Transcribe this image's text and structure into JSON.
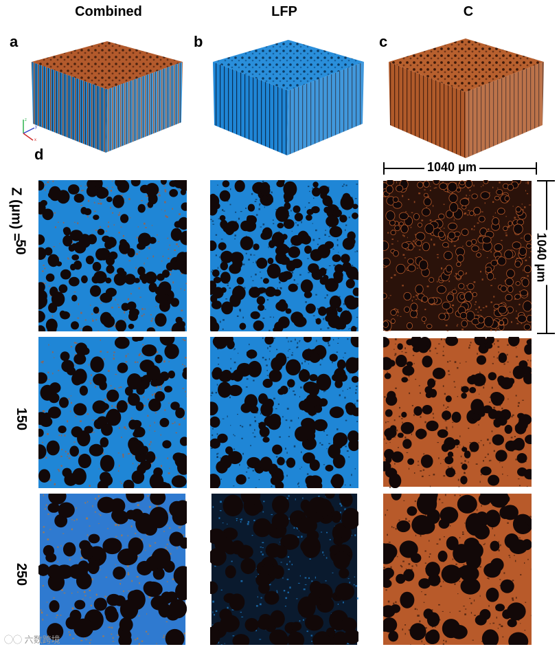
{
  "columns": {
    "combined": "Combined",
    "lfp": "LFP",
    "c": "C"
  },
  "panel_letters": {
    "a": "a",
    "b": "b",
    "c": "c",
    "d": "d"
  },
  "z_labels": {
    "axis": "Z (μm) =",
    "z50": "50",
    "z150": "150",
    "z250": "250"
  },
  "scale": {
    "horizontal": "1040 μm",
    "vertical": "1040 μm"
  },
  "colors": {
    "lfp_blue": "#1f86d6",
    "carbon_orange": "#b85a2a",
    "pore_black": "#120808"
  },
  "axes_icon": "xyz-orientation-axes-icon",
  "watermark": "六数跨境"
}
